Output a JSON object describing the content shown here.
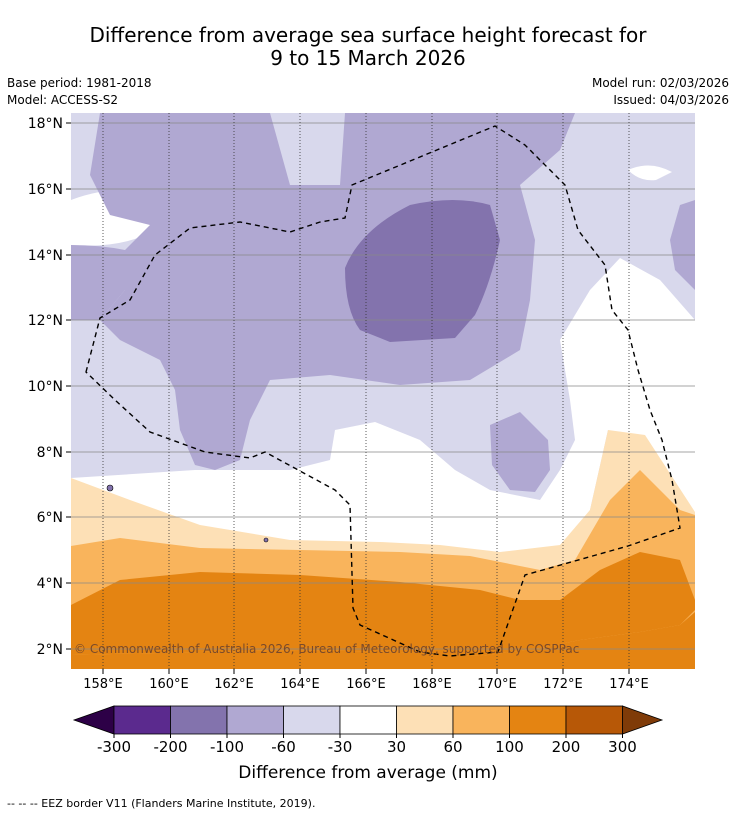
{
  "title_line1": "Difference from average sea surface height forecast for",
  "title_line2": "9 to 15 March 2026",
  "base_period": "Base period: 1981-2018",
  "model": "Model: ACCESS-S2",
  "model_run": "Model run: 02/03/2026",
  "issued": "Issued: 04/03/2026",
  "lat_labels": [
    "18°N",
    "16°N",
    "14°N",
    "12°N",
    "10°N",
    "8°N",
    "6°N",
    "4°N",
    "2°N"
  ],
  "lon_labels": [
    "158°E",
    "160°E",
    "162°E",
    "164°E",
    "166°E",
    "168°E",
    "170°E",
    "172°E",
    "174°E"
  ],
  "copyright": "© Commonwealth of Australia 2026, Bureau of Meteorology, supported by COSPPac",
  "colorbar": {
    "ticks": [
      "-300",
      "-200",
      "-100",
      "-60",
      "-30",
      "30",
      "60",
      "100",
      "200",
      "300"
    ],
    "colors": [
      "#5b2a8e",
      "#8373ad",
      "#b0a8d2",
      "#d8d8ec",
      "#ffffff",
      "#fde0b6",
      "#f9b45c",
      "#e48412",
      "#b75807"
    ],
    "under_color": "#2d0047",
    "over_color": "#7f3b08",
    "label": "Difference from average (mm)"
  },
  "footnote": "-- -- -- EEZ border V11 (Flanders Marine Institute, 2019)."
}
